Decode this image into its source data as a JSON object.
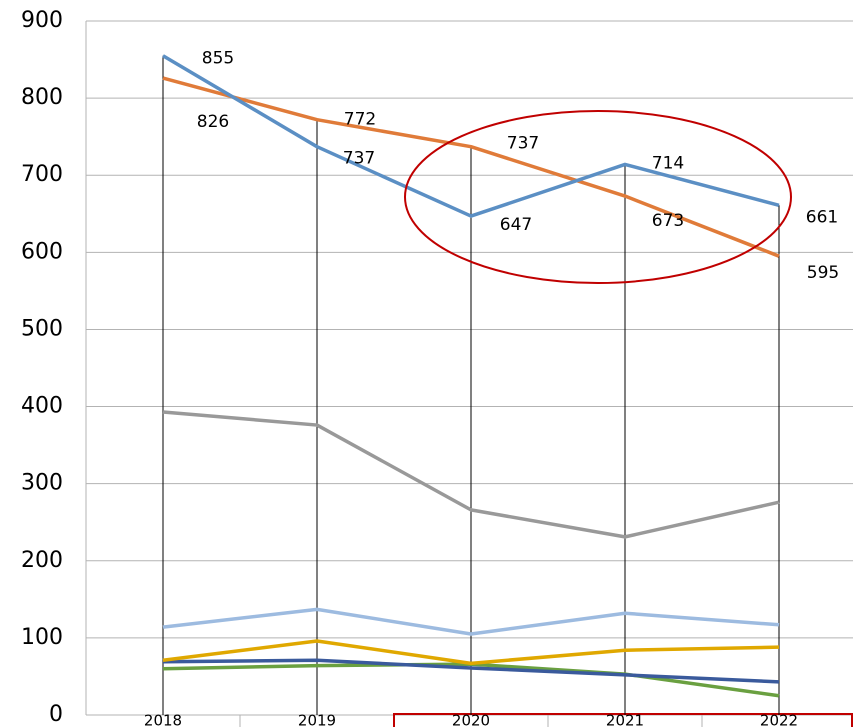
{
  "chart_data": {
    "type": "line",
    "categories": [
      "2018",
      "2019",
      "2020",
      "2021",
      "2022"
    ],
    "series": [
      {
        "color": "#5b8fc4",
        "values": [
          855,
          737,
          647,
          714,
          661
        ],
        "data_labels": true
      },
      {
        "color": "#e07b39",
        "values": [
          826,
          772,
          737,
          673,
          595
        ],
        "data_labels": true
      },
      {
        "color": "#999999",
        "values": [
          393,
          376,
          266,
          231,
          276
        ]
      },
      {
        "color": "#9dbbe0",
        "values": [
          114,
          137,
          105,
          132,
          117
        ]
      },
      {
        "color": "#e0a800",
        "values": [
          71,
          96,
          67,
          84,
          88
        ]
      },
      {
        "color": "#3a5a9c",
        "values": [
          69,
          71,
          61,
          52,
          43
        ]
      },
      {
        "color": "#6aa040",
        "values": [
          60,
          64,
          66,
          53,
          25
        ]
      }
    ],
    "ylim": [
      0,
      900
    ],
    "yticks": [
      0,
      100,
      200,
      300,
      400,
      500,
      600,
      700,
      800,
      900
    ],
    "grid": true
  }
}
